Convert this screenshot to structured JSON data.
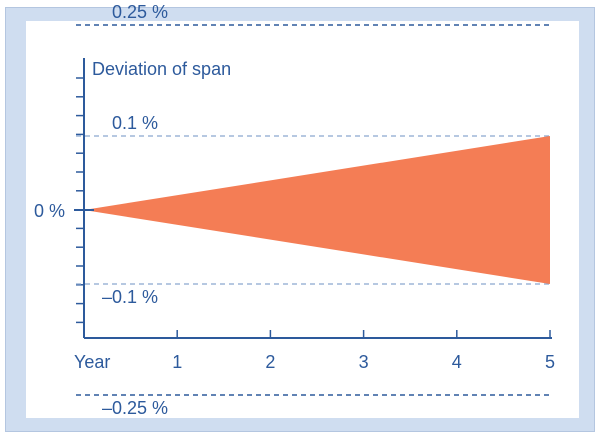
{
  "chart_data": {
    "type": "area",
    "ylabel": "Deviation of span",
    "xlabel": "Year",
    "zero_label": "0 %",
    "x_ticks": [
      "1",
      "2",
      "3",
      "4",
      "5"
    ],
    "xlim": [
      0,
      5
    ],
    "ylim": [
      -0.4,
      0.4
    ],
    "reference_lines": [
      {
        "label": "0.25 %",
        "value": 0.25,
        "style": "dashed",
        "label_position": "above"
      },
      {
        "label": "0.1 %",
        "value": 0.1,
        "style": "dashed-light",
        "label_position": "above"
      },
      {
        "label": "–0.1 %",
        "value": -0.1,
        "style": "dashed-light",
        "label_position": "below"
      },
      {
        "label": "–0.25 %",
        "value": -0.25,
        "style": "dashed",
        "label_position": "below"
      }
    ],
    "series": [
      {
        "x": [
          0,
          5
        ],
        "upper": [
          0,
          0.1
        ],
        "lower": [
          0,
          -0.1
        ]
      }
    ],
    "colors": {
      "area": "#f47d55",
      "axis": "#2d5a9c",
      "dashed": "#2d5a9c",
      "dashed_light": "#8aa6cf",
      "frame": "#cfddf0"
    }
  }
}
